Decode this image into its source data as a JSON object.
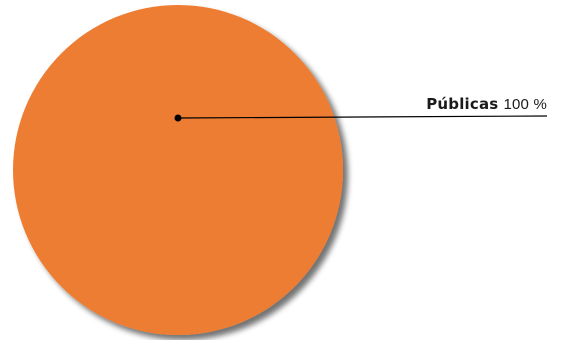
{
  "chart_data": {
    "type": "pie",
    "title": "",
    "categories": [
      "Públicas"
    ],
    "values": [
      100
    ],
    "value_labels": [
      "100 %"
    ],
    "colors": [
      "#ed7d31"
    ],
    "legend": "none",
    "labels_style": "callout-right"
  }
}
